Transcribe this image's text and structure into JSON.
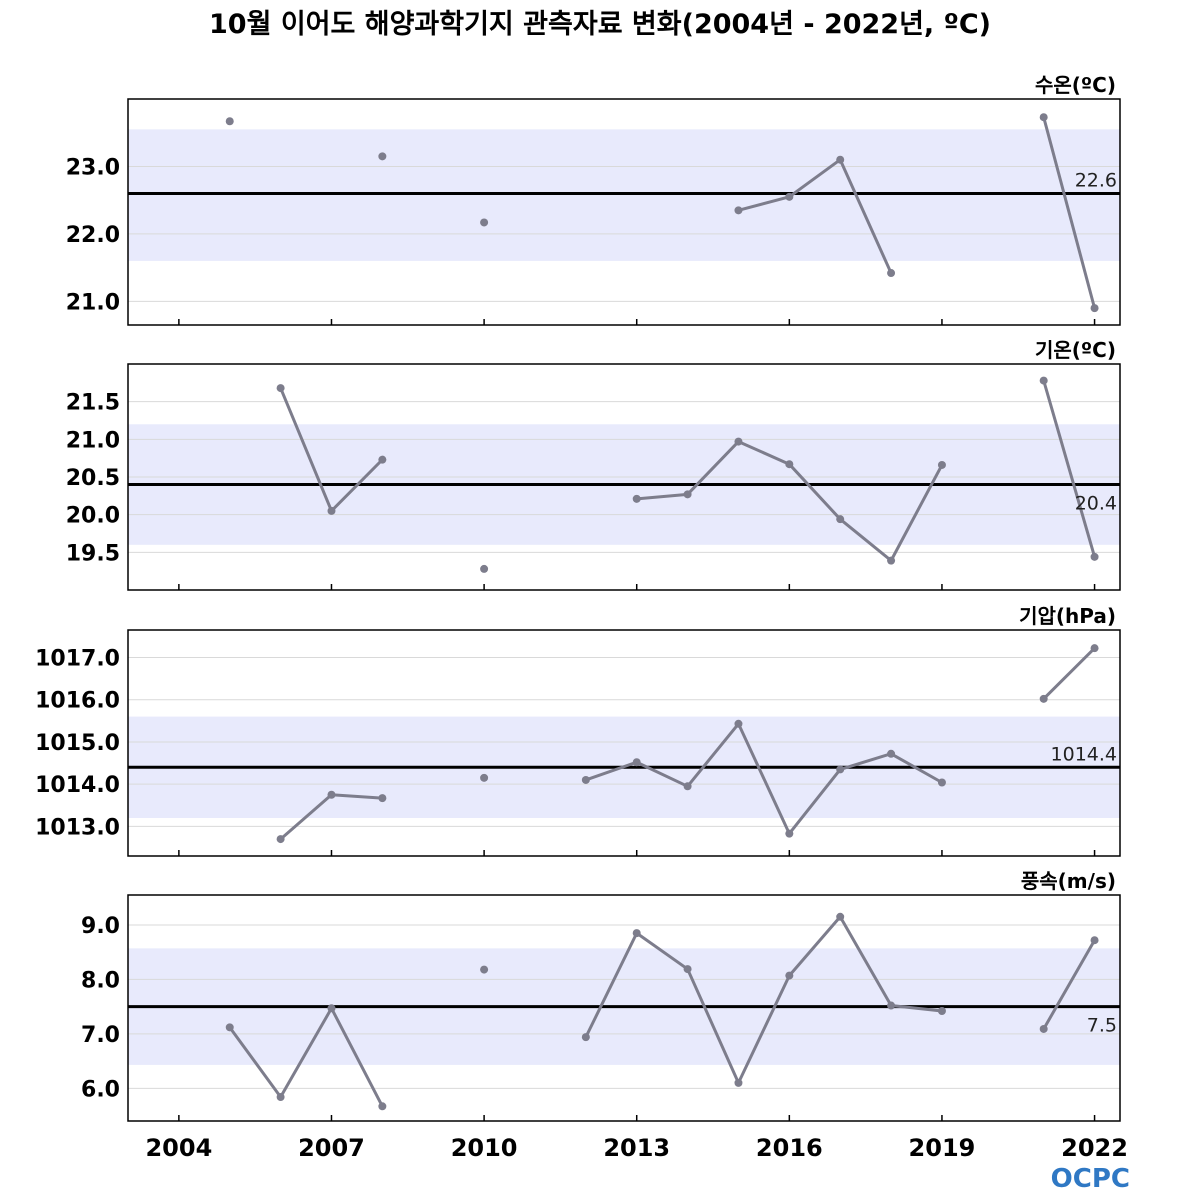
{
  "title": "10월 이어도 해양과학기지 관측자료 변화(2004년 - 2022년, ºC)",
  "logo": "OCPC",
  "colors": {
    "line": "#7d7d8c",
    "band": "#e8eafc",
    "mean": "#000000",
    "grid": "#d9d9d9"
  },
  "chart_data": [
    {
      "type": "line",
      "label": "수온(ºC)",
      "x": [
        2004,
        2005,
        2006,
        2007,
        2008,
        2009,
        2010,
        2011,
        2012,
        2013,
        2014,
        2015,
        2016,
        2017,
        2018,
        2019,
        2020,
        2021,
        2022
      ],
      "values": [
        null,
        23.67,
        null,
        null,
        23.15,
        null,
        22.17,
        null,
        null,
        null,
        null,
        22.35,
        22.55,
        23.1,
        21.42,
        null,
        null,
        23.73,
        20.9
      ],
      "mean": 22.6,
      "mean_label": "22.6",
      "band": [
        21.6,
        23.55
      ],
      "yticks": [
        21.0,
        22.0,
        23.0
      ],
      "ytick_labels": [
        "21.0",
        "22.0",
        "23.0"
      ],
      "ylim": [
        20.65,
        24.0
      ]
    },
    {
      "type": "line",
      "label": "기온(ºC)",
      "x": [
        2004,
        2005,
        2006,
        2007,
        2008,
        2009,
        2010,
        2011,
        2012,
        2013,
        2014,
        2015,
        2016,
        2017,
        2018,
        2019,
        2020,
        2021,
        2022
      ],
      "values": [
        null,
        null,
        21.68,
        20.05,
        20.73,
        null,
        19.28,
        null,
        null,
        20.21,
        20.27,
        20.97,
        20.67,
        19.94,
        19.39,
        20.66,
        null,
        21.78,
        19.44
      ],
      "mean": 20.4,
      "mean_label": "20.4",
      "band": [
        19.6,
        21.2
      ],
      "yticks": [
        19.5,
        20.0,
        20.5,
        21.0,
        21.5
      ],
      "ytick_labels": [
        "19.5",
        "20.0",
        "20.5",
        "21.0",
        "21.5"
      ],
      "ylim": [
        19.0,
        22.0
      ]
    },
    {
      "type": "line",
      "label": "기압(hPa)",
      "x": [
        2004,
        2005,
        2006,
        2007,
        2008,
        2009,
        2010,
        2011,
        2012,
        2013,
        2014,
        2015,
        2016,
        2017,
        2018,
        2019,
        2020,
        2021,
        2022
      ],
      "values": [
        null,
        null,
        1012.7,
        1013.75,
        1013.67,
        null,
        1014.15,
        null,
        1014.1,
        1014.52,
        1013.95,
        1015.43,
        1012.83,
        1014.35,
        1014.72,
        1014.04,
        null,
        1016.02,
        1017.22
      ],
      "mean": 1014.4,
      "mean_label": "1014.4",
      "band": [
        1013.2,
        1015.6
      ],
      "yticks": [
        1013.0,
        1014.0,
        1015.0,
        1016.0,
        1017.0
      ],
      "ytick_labels": [
        "1013.0",
        "1014.0",
        "1015.0",
        "1016.0",
        "1017.0"
      ],
      "ylim": [
        1012.3,
        1017.65
      ]
    },
    {
      "type": "line",
      "label": "풍속(m/s)",
      "x": [
        2004,
        2005,
        2006,
        2007,
        2008,
        2009,
        2010,
        2011,
        2012,
        2013,
        2014,
        2015,
        2016,
        2017,
        2018,
        2019,
        2020,
        2021,
        2022
      ],
      "values": [
        null,
        7.12,
        5.84,
        7.47,
        5.67,
        null,
        8.18,
        null,
        6.94,
        8.85,
        8.19,
        6.1,
        8.07,
        9.15,
        7.52,
        7.42,
        null,
        7.09,
        8.72
      ],
      "mean": 7.5,
      "mean_label": "7.5",
      "band": [
        6.43,
        8.57
      ],
      "yticks": [
        6.0,
        7.0,
        8.0,
        9.0
      ],
      "ytick_labels": [
        "6.0",
        "7.0",
        "8.0",
        "9.0"
      ],
      "ylim": [
        5.4,
        9.55
      ]
    }
  ],
  "xticks": [
    2004,
    2007,
    2010,
    2013,
    2016,
    2019,
    2022
  ],
  "xtick_labels": [
    "2004",
    "2007",
    "2010",
    "2013",
    "2016",
    "2019",
    "2022"
  ],
  "minor_xticks": [
    2004,
    2007,
    2010,
    2013,
    2016,
    2019,
    2022
  ],
  "xlim": [
    2003,
    2022.5
  ]
}
